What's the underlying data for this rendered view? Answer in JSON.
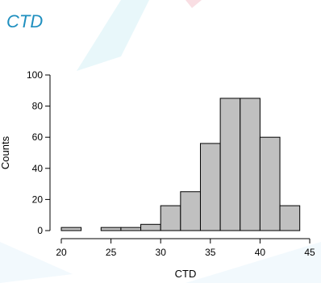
{
  "header": {
    "title": "CTD"
  },
  "chart_data": {
    "type": "bar",
    "subtype": "histogram",
    "bins": [
      {
        "x0": 20,
        "x1": 22,
        "count": 2
      },
      {
        "x0": 22,
        "x1": 24,
        "count": 0
      },
      {
        "x0": 24,
        "x1": 26,
        "count": 2
      },
      {
        "x0": 26,
        "x1": 28,
        "count": 2
      },
      {
        "x0": 28,
        "x1": 30,
        "count": 4
      },
      {
        "x0": 30,
        "x1": 32,
        "count": 16
      },
      {
        "x0": 32,
        "x1": 34,
        "count": 25
      },
      {
        "x0": 34,
        "x1": 36,
        "count": 56
      },
      {
        "x0": 36,
        "x1": 38,
        "count": 85
      },
      {
        "x0": 38,
        "x1": 40,
        "count": 85
      },
      {
        "x0": 40,
        "x1": 42,
        "count": 60
      },
      {
        "x0": 42,
        "x1": 44,
        "count": 16
      }
    ],
    "xlabel": "CTD",
    "ylabel": "Counts",
    "xlim": [
      20,
      45
    ],
    "ylim": [
      0,
      100
    ],
    "xticks": [
      20,
      25,
      30,
      35,
      40,
      45
    ],
    "yticks": [
      0,
      20,
      40,
      60,
      80,
      100
    ],
    "bar_color": "#c0c0c0",
    "edge_color": "#000000",
    "grid": false,
    "legend": "none"
  }
}
